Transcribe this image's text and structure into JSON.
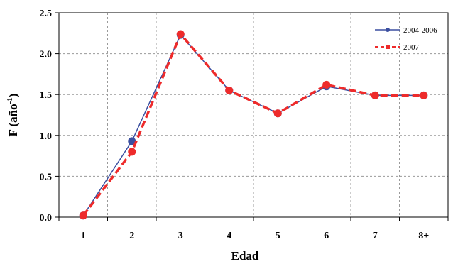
{
  "chart_data": {
    "type": "line",
    "xlabel": "Edad",
    "ylabel": "F (año",
    "ylabel_sup": "-1",
    "ylabel_close": ")",
    "categories": [
      "1",
      "2",
      "3",
      "4",
      "5",
      "6",
      "7",
      "8+"
    ],
    "ylim": [
      0,
      2.5
    ],
    "yticks": [
      "0.0",
      "0.5",
      "1.0",
      "1.5",
      "2.0",
      "2.5"
    ],
    "grid": true,
    "legend_position": "top-right",
    "series": [
      {
        "name": "2004-2006",
        "values": [
          0.02,
          0.93,
          2.23,
          1.55,
          1.27,
          1.6,
          1.49,
          1.49
        ],
        "color": "#3b4fa0",
        "style": "solid",
        "marker": "circle"
      },
      {
        "name": "2007",
        "values": [
          0.02,
          0.8,
          2.24,
          1.55,
          1.27,
          1.62,
          1.49,
          1.49
        ],
        "color": "#ee2b2b",
        "style": "dashed",
        "marker": "square"
      }
    ]
  }
}
